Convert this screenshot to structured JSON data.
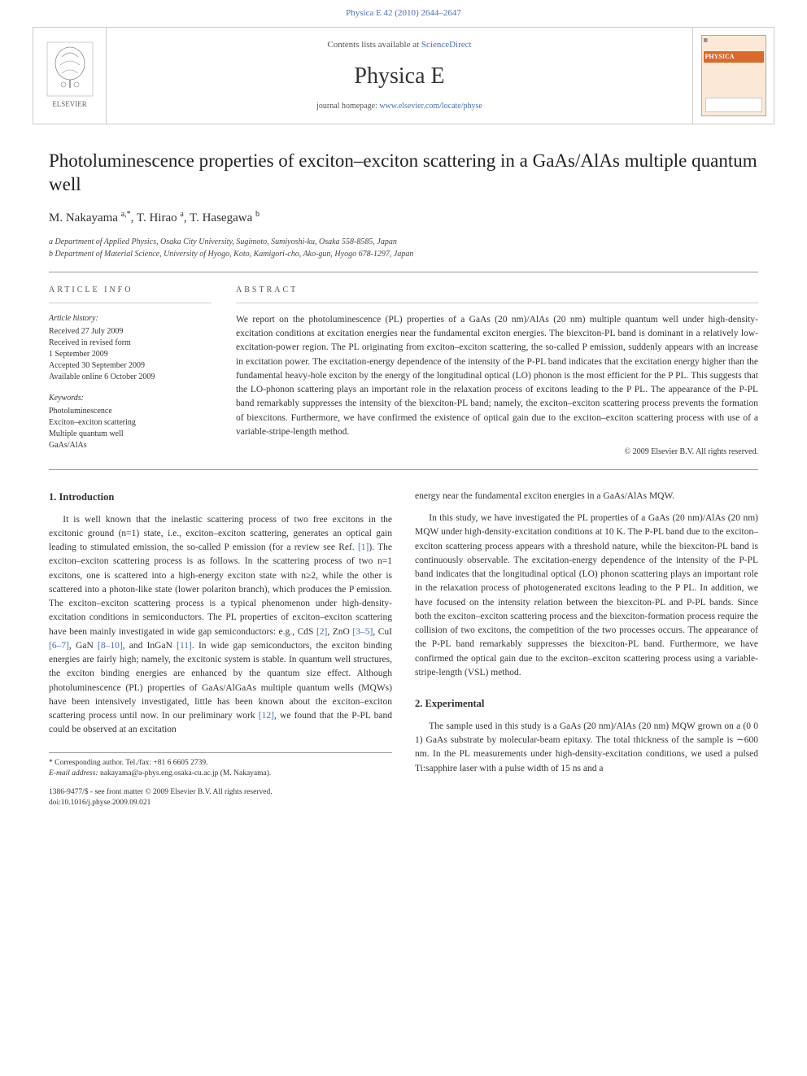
{
  "top_link": {
    "prefix": "",
    "text": "Physica E 42 (2010) 2644–2647",
    "url_label": "Physica E 42 (2010) 2644–2647"
  },
  "header": {
    "contents_prefix": "Contents lists available at ",
    "contents_link": "ScienceDirect",
    "journal_name": "Physica E",
    "homepage_prefix": "journal homepage: ",
    "homepage_link": "www.elsevier.com/locate/physe",
    "publisher_label": "ELSEVIER",
    "cover_band": "PHYSICA"
  },
  "article": {
    "title": "Photoluminescence properties of exciton–exciton scattering in a GaAs/AlAs multiple quantum well",
    "authors_html": "M. Nakayama <sup>a,*</sup>, T. Hirao <sup>a</sup>, T. Hasegawa <sup>b</sup>",
    "authors": [
      {
        "name": "M. Nakayama",
        "sup": "a,*"
      },
      {
        "name": "T. Hirao",
        "sup": "a"
      },
      {
        "name": "T. Hasegawa",
        "sup": "b"
      }
    ],
    "affiliations": [
      "a Department of Applied Physics, Osaka City University, Sugimoto, Sumiyoshi-ku, Osaka 558-8585, Japan",
      "b Department of Material Science, University of Hyogo, Koto, Kamigori-cho, Ako-gun, Hyogo 678-1297, Japan"
    ]
  },
  "info": {
    "section_label": "ARTICLE INFO",
    "history_title": "Article history:",
    "history": [
      "Received 27 July 2009",
      "Received in revised form",
      "1 September 2009",
      "Accepted 30 September 2009",
      "Available online 6 October 2009"
    ],
    "keywords_title": "Keywords:",
    "keywords": [
      "Photoluminescence",
      "Exciton–exciton scattering",
      "Multiple quantum well",
      "GaAs/AlAs"
    ]
  },
  "abstract": {
    "section_label": "ABSTRACT",
    "text": "We report on the photoluminescence (PL) properties of a GaAs (20 nm)/AlAs (20 nm) multiple quantum well under high-density-excitation conditions at excitation energies near the fundamental exciton energies. The biexciton-PL band is dominant in a relatively low-excitation-power region. The PL originating from exciton–exciton scattering, the so-called P emission, suddenly appears with an increase in excitation power. The excitation-energy dependence of the intensity of the P-PL band indicates that the excitation energy higher than the fundamental heavy-hole exciton by the energy of the longitudinal optical (LO) phonon is the most efficient for the P PL. This suggests that the LO-phonon scattering plays an important role in the relaxation process of excitons leading to the P PL. The appearance of the P-PL band remarkably suppresses the intensity of the biexciton-PL band; namely, the exciton–exciton scattering process prevents the formation of biexcitons. Furthermore, we have confirmed the existence of optical gain due to the exciton–exciton scattering process with use of a variable-stripe-length method.",
    "copyright": "© 2009 Elsevier B.V. All rights reserved."
  },
  "sections": {
    "intro_heading": "1. Introduction",
    "intro_p1": "It is well known that the inelastic scattering process of two free excitons in the excitonic ground (n=1) state, i.e., exciton–exciton scattering, generates an optical gain leading to stimulated emission, the so-called P emission (for a review see Ref. [1]). The exciton–exciton scattering process is as follows. In the scattering process of two n=1 excitons, one is scattered into a high-energy exciton state with n≥2, while the other is scattered into a photon-like state (lower polariton branch), which produces the P emission. The exciton–exciton scattering process is a typical phenomenon under high-density-excitation conditions in semiconductors. The PL properties of exciton–exciton scattering have been mainly investigated in wide gap semiconductors: e.g., CdS [2], ZnO [3–5], CuI [6–7], GaN [8–10], and InGaN [11]. In wide gap semiconductors, the exciton binding energies are fairly high; namely, the excitonic system is stable. In quantum well structures, the exciton binding energies are enhanced by the quantum size effect. Although photoluminescence (PL) properties of GaAs/AlGaAs multiple quantum wells (MQWs) have been intensively investigated, little has been known about the exciton–exciton scattering process until now. In our preliminary work [12], we found that the P-PL band could be observed at an excitation",
    "intro_p1_cont": "energy near the fundamental exciton energies in a GaAs/AlAs MQW.",
    "intro_p2": "In this study, we have investigated the PL properties of a GaAs (20 nm)/AlAs (20 nm) MQW under high-density-excitation conditions at 10 K. The P-PL band due to the exciton–exciton scattering process appears with a threshold nature, while the biexciton-PL band is continuously observable. The excitation-energy dependence of the intensity of the P-PL band indicates that the longitudinal optical (LO) phonon scattering plays an important role in the relaxation process of photogenerated excitons leading to the P PL. In addition, we have focused on the intensity relation between the biexciton-PL and P-PL bands. Since both the exciton–exciton scattering process and the biexciton-formation process require the collision of two excitons, the competition of the two processes occurs. The appearance of the P-PL band remarkably suppresses the biexciton-PL band. Furthermore, we have confirmed the optical gain due to the exciton–exciton scattering process using a variable-stripe-length (VSL) method.",
    "exp_heading": "2. Experimental",
    "exp_p1": "The sample used in this study is a GaAs (20 nm)/AlAs (20 nm) MQW grown on a (0 0 1) GaAs substrate by molecular-beam epitaxy. The total thickness of the sample is ∼600 nm. In the PL measurements under high-density-excitation conditions, we used a pulsed Ti:sapphire laser with a pulse width of 15 ns and a"
  },
  "footnotes": {
    "corresponding": "* Corresponding author. Tel./fax: +81 6 6605 2739.",
    "email_label": "E-mail address:",
    "email": "nakayama@a-phys.eng.osaka-cu.ac.jp",
    "email_person": "(M. Nakayama)."
  },
  "doi": {
    "issn_line": "1386-9477/$ - see front matter © 2009 Elsevier B.V. All rights reserved.",
    "doi_line": "doi:10.1016/j.physe.2009.09.021"
  },
  "colors": {
    "link": "#4a6fb5",
    "rule": "#999999",
    "text": "#333333",
    "cover_bg": "#fbe9d5",
    "cover_band": "#d96a2b"
  }
}
